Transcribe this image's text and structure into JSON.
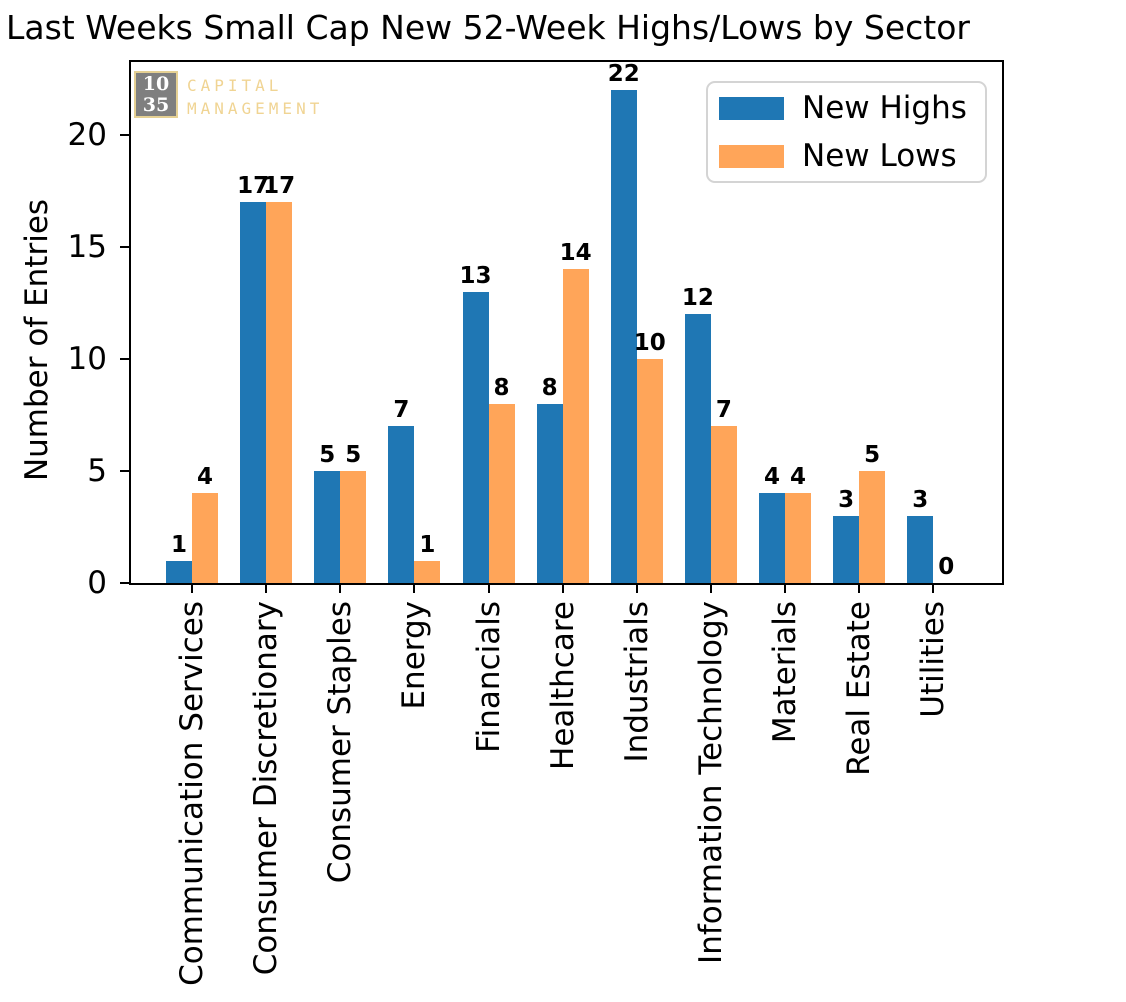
{
  "watermark": {
    "badge_line1": "10",
    "badge_line2": "35",
    "name_line1": "CAPITAL",
    "name_line2": "MANAGEMENT",
    "badge_bg": "#7f7f7f",
    "accent": "#f0d493"
  },
  "chart_data": {
    "type": "bar",
    "title": "Last Weeks Small Cap New 52-Week Highs/Lows by Sector",
    "xlabel": "",
    "ylabel": "Number of Entries",
    "categories": [
      "Communication Services",
      "Consumer Discretionary",
      "Consumer Staples",
      "Energy",
      "Financials",
      "Healthcare",
      "Industrials",
      "Information Technology",
      "Materials",
      "Real Estate",
      "Utilities"
    ],
    "series": [
      {
        "name": "New Highs",
        "color": "#1f77b4",
        "values": [
          1,
          17,
          5,
          7,
          13,
          8,
          22,
          12,
          4,
          3,
          3
        ]
      },
      {
        "name": "New Lows",
        "color": "#ffa559",
        "values": [
          4,
          17,
          5,
          1,
          8,
          14,
          10,
          7,
          4,
          5,
          0
        ]
      }
    ],
    "yticks": [
      0,
      5,
      10,
      15,
      20
    ],
    "ylim": [
      0,
      23.26
    ],
    "grid": false,
    "legend_position": "upper right",
    "bar_value_labels": true
  }
}
